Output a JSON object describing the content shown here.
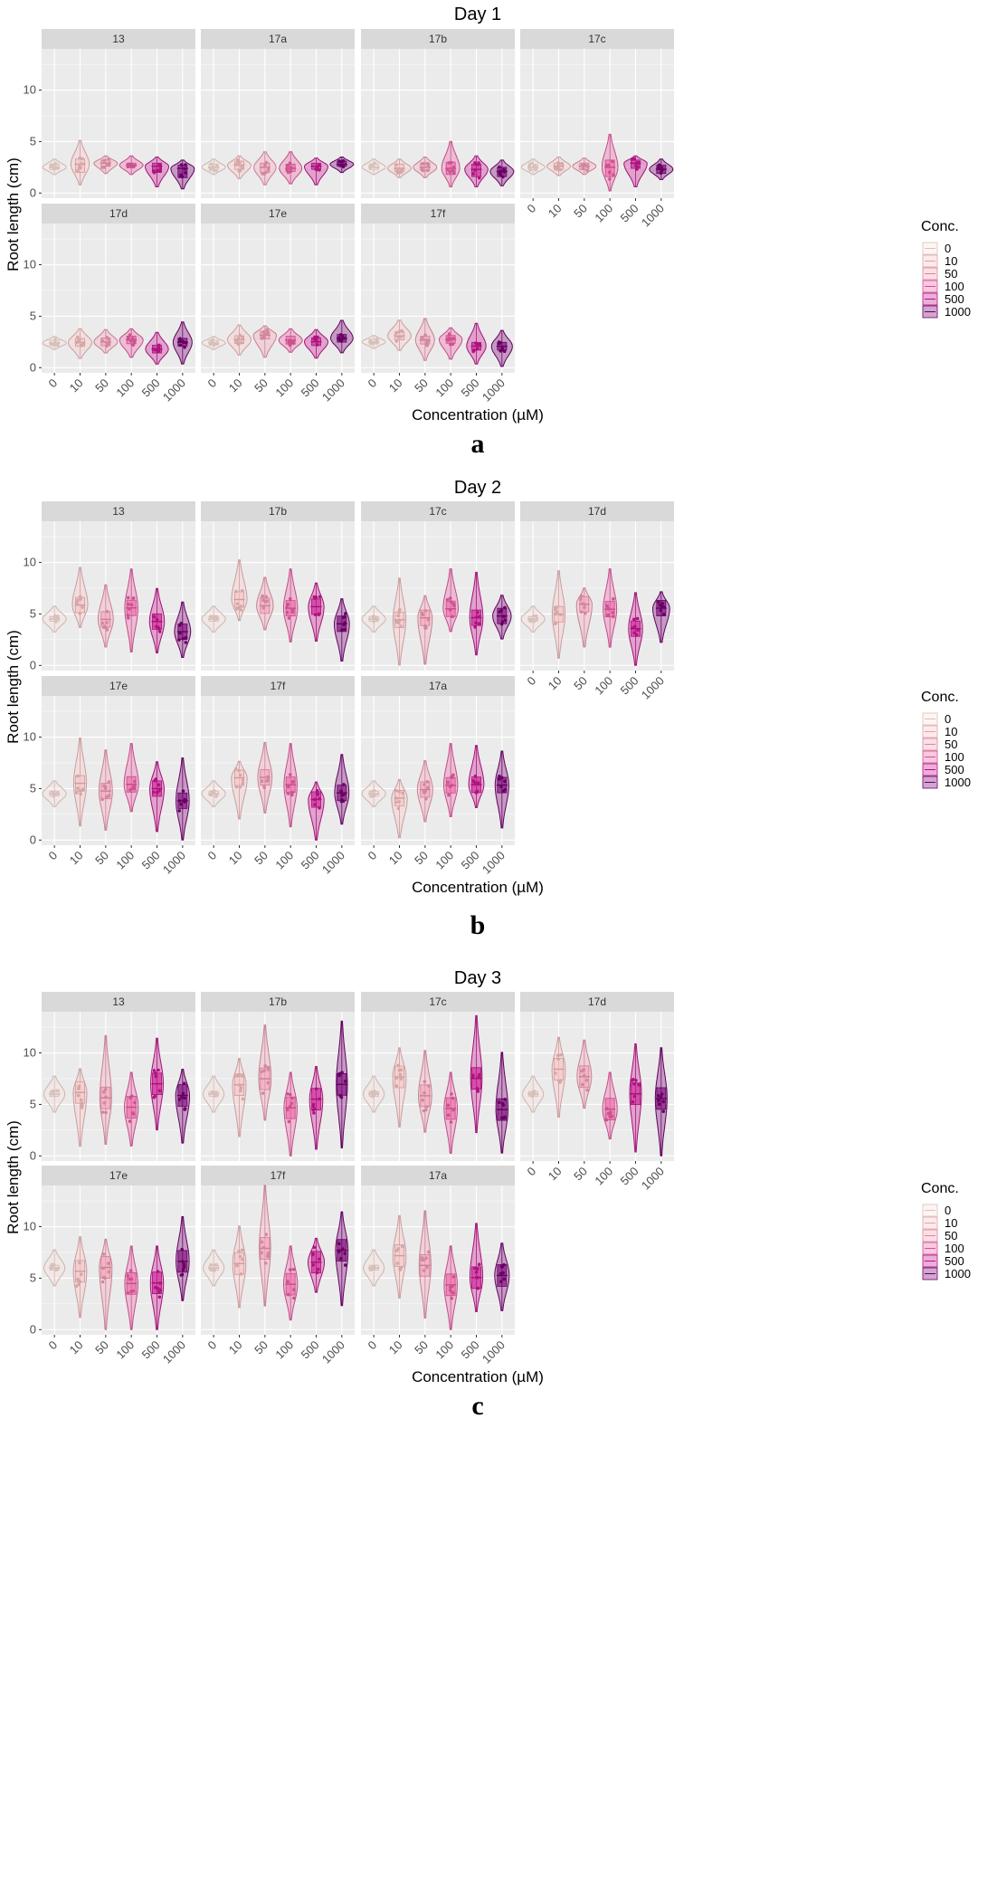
{
  "figure_labels": [
    "a",
    "b",
    "c"
  ],
  "colors": {
    "panel_bg": "#EBEBEB",
    "strip_bg": "#D9D9D9",
    "grid": "#FFFFFF",
    "conc": {
      "0": "#FDE3DC",
      "10": "#FBC4C5",
      "50": "#F7A0B8",
      "100": "#F062A8",
      "500": "#CB1793",
      "1000": "#7B0076"
    }
  },
  "chart_data": [
    {
      "type": "violin",
      "title": "Day 1",
      "xlabel": "Concentration (µM)",
      "ylabel": "Root length (cm)",
      "ylim": [
        -0.5,
        14
      ],
      "yticks": [
        0,
        5,
        10
      ],
      "categories": [
        "0",
        "10",
        "50",
        "100",
        "500",
        "1000"
      ],
      "legend": {
        "title": "Conc.",
        "entries": [
          "0",
          "10",
          "50",
          "100",
          "500",
          "1000"
        ]
      },
      "panels": [
        {
          "name": "13",
          "series": [
            {
              "median": 2.5,
              "min": 1.8,
              "max": 3.3,
              "q1": 2.3,
              "q3": 2.8
            },
            {
              "median": 2.8,
              "min": 0.8,
              "max": 5.1,
              "q1": 2.0,
              "q3": 3.3
            },
            {
              "median": 2.9,
              "min": 1.9,
              "max": 3.6,
              "q1": 2.6,
              "q3": 3.2
            },
            {
              "median": 2.7,
              "min": 1.8,
              "max": 3.6,
              "q1": 2.6,
              "q3": 2.9
            },
            {
              "median": 2.6,
              "min": 0.6,
              "max": 3.5,
              "q1": 2.0,
              "q3": 2.9
            },
            {
              "median": 2.4,
              "min": 0.4,
              "max": 3.2,
              "q1": 1.5,
              "q3": 2.7
            }
          ]
        },
        {
          "name": "17a",
          "series": [
            {
              "median": 2.5,
              "min": 1.8,
              "max": 3.3,
              "q1": 2.3,
              "q3": 2.8
            },
            {
              "median": 2.7,
              "min": 1.4,
              "max": 3.6,
              "q1": 2.3,
              "q3": 3.1
            },
            {
              "median": 2.5,
              "min": 0.8,
              "max": 4.0,
              "q1": 2.0,
              "q3": 2.9
            },
            {
              "median": 2.4,
              "min": 0.9,
              "max": 4.0,
              "q1": 2.1,
              "q3": 2.8
            },
            {
              "median": 2.6,
              "min": 0.8,
              "max": 3.4,
              "q1": 2.3,
              "q3": 2.9
            },
            {
              "median": 2.8,
              "min": 2.0,
              "max": 3.5,
              "q1": 2.6,
              "q3": 3.1
            }
          ]
        },
        {
          "name": "17b",
          "series": [
            {
              "median": 2.5,
              "min": 1.8,
              "max": 3.3,
              "q1": 2.3,
              "q3": 2.8
            },
            {
              "median": 2.4,
              "min": 1.5,
              "max": 3.3,
              "q1": 2.1,
              "q3": 2.8
            },
            {
              "median": 2.5,
              "min": 1.5,
              "max": 3.5,
              "q1": 2.2,
              "q3": 2.9
            },
            {
              "median": 2.4,
              "min": 0.6,
              "max": 5.0,
              "q1": 1.8,
              "q3": 3.0
            },
            {
              "median": 2.3,
              "min": 0.6,
              "max": 3.6,
              "q1": 1.6,
              "q3": 2.8
            },
            {
              "median": 2.1,
              "min": 0.7,
              "max": 3.2,
              "q1": 1.6,
              "q3": 2.5
            }
          ]
        },
        {
          "name": "17c",
          "series": [
            {
              "median": 2.5,
              "min": 1.8,
              "max": 3.3,
              "q1": 2.3,
              "q3": 2.8
            },
            {
              "median": 2.6,
              "min": 1.7,
              "max": 3.5,
              "q1": 2.3,
              "q3": 2.9
            },
            {
              "median": 2.6,
              "min": 1.8,
              "max": 3.4,
              "q1": 2.3,
              "q3": 2.9
            },
            {
              "median": 2.5,
              "min": 0.2,
              "max": 5.7,
              "q1": 1.6,
              "q3": 3.2
            },
            {
              "median": 2.9,
              "min": 0.6,
              "max": 3.6,
              "q1": 2.4,
              "q3": 3.2
            },
            {
              "median": 2.3,
              "min": 1.3,
              "max": 3.3,
              "q1": 1.9,
              "q3": 2.7
            }
          ]
        }
      ]
    }
  ]
}
